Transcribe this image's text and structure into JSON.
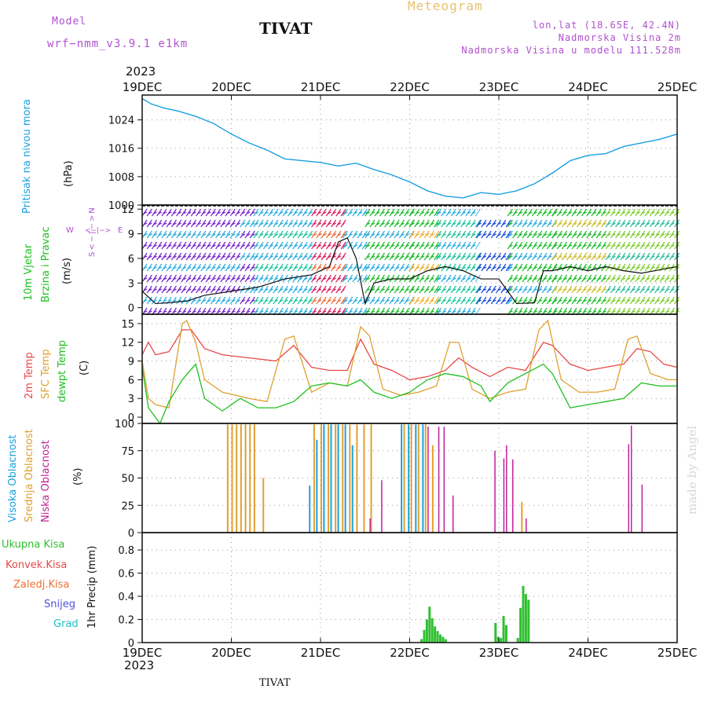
{
  "header": {
    "model_label": "Model",
    "model_name": "wrf−nmm_v3.9.1  e1km",
    "station": "TIVAT",
    "meteogram": "Meteogram",
    "lonlat": "lon,lat (18.65E, 42.4N)",
    "elev": "Nadmorska Visina 2m",
    "elev_model": "Nadmorska Visina u modelu 111.528m",
    "year": "2023",
    "footer_station": "TIVAT",
    "watermark": "made by Angel"
  },
  "colors": {
    "pressure": "#1aa0e0",
    "t2m": "#e84848",
    "tsfc": "#e0a030",
    "dewpt": "#20c020",
    "high_cloud": "#1aa0e0",
    "mid_cloud": "#e0a030",
    "low_cloud": "#c0209a",
    "precip_total": "#30c030",
    "precip_conv": "#e84848",
    "precip_freez": "#f07030",
    "snow": "#5050e0",
    "hail": "#20c0c0"
  },
  "x_labels": [
    "19DEC",
    "20DEC",
    "21DEC",
    "22DEC",
    "23DEC",
    "24DEC",
    "25DEC"
  ],
  "panels": {
    "pressure": {
      "label": "Pritisak na nivou mora",
      "unit": "(hPa)"
    },
    "wind": {
      "label1": "10m Vjetar",
      "label2": "Brzina i Pravac",
      "unit": "(m/s)",
      "compass_n": "N",
      "compass_s": "S",
      "compass_w": "W",
      "compass_e": "E",
      "compass_arrows": "<−|−>"
    },
    "temp": {
      "label1": "2m Temp",
      "label2": "SFC Temp",
      "label3": "dewpt Temp",
      "unit": "(C)"
    },
    "cloud": {
      "label1": "Visoka Oblacnost",
      "label2": "Srednja Oblacnost",
      "label3": "Niska Oblacnost",
      "unit": "(%)"
    },
    "precip": {
      "unit": "1hr Precip (mm)",
      "legend": [
        "Ukupna Kisa",
        "Konvek.Kisa",
        "Zaledj.Kisa",
        "Snijeg",
        "Grad"
      ]
    }
  },
  "chart_data": [
    {
      "type": "line",
      "name": "pressure",
      "ylim": [
        1000,
        1031
      ],
      "yticks": [
        1000,
        1008,
        1016,
        1024
      ],
      "x_days": [
        0,
        0.1,
        0.25,
        0.4,
        0.6,
        0.8,
        1,
        1.2,
        1.4,
        1.6,
        1.8,
        2,
        2.2,
        2.4,
        2.6,
        2.8,
        3,
        3.2,
        3.4,
        3.6,
        3.8,
        4,
        4.2,
        4.4,
        4.6,
        4.8,
        5,
        5.2,
        5.4,
        5.6,
        5.8,
        6
      ],
      "values": [
        1030,
        1028.5,
        1027.3,
        1026.5,
        1025,
        1023,
        1020,
        1017.5,
        1015.5,
        1013,
        1012.5,
        1012,
        1011,
        1011.8,
        1010,
        1008.5,
        1006.5,
        1004,
        1002.5,
        1002,
        1003.5,
        1003,
        1004,
        1006,
        1009,
        1012.5,
        1014,
        1014.5,
        1016.5,
        1017.5,
        1018.5,
        1020
      ]
    },
    {
      "type": "line",
      "name": "wind",
      "ylim": [
        -0.8,
        12.5
      ],
      "yticks": [
        0,
        3,
        6,
        9,
        12
      ],
      "x_days": [
        0,
        0.15,
        0.3,
        0.5,
        0.7,
        1,
        1.3,
        1.6,
        1.9,
        2.1,
        2.2,
        2.3,
        2.4,
        2.5,
        2.6,
        2.8,
        3,
        3.2,
        3.4,
        3.6,
        3.8,
        4,
        4.2,
        4.4,
        4.5,
        4.6,
        4.8,
        5,
        5.2,
        5.4,
        5.6,
        5.8,
        6
      ],
      "values": [
        2,
        0.5,
        0.6,
        0.8,
        1.5,
        2,
        2.5,
        3.5,
        4,
        5,
        8,
        8.5,
        6,
        0.5,
        3,
        3.5,
        3.5,
        4.5,
        5,
        4.5,
        3.5,
        3.5,
        0.5,
        0.6,
        4.5,
        4.5,
        5,
        4.5,
        5,
        4.5,
        4.2,
        4.6,
        5
      ]
    },
    {
      "type": "line",
      "name": "temperature",
      "ylim": [
        -1,
        16.5
      ],
      "yticks": [
        0,
        3,
        6,
        9,
        12,
        15
      ],
      "series": [
        {
          "name": "2m Temp",
          "x_days": [
            0,
            0.07,
            0.15,
            0.3,
            0.45,
            0.55,
            0.7,
            0.9,
            1.2,
            1.5,
            1.7,
            1.9,
            2.1,
            2.3,
            2.45,
            2.6,
            2.8,
            3,
            3.2,
            3.4,
            3.55,
            3.7,
            3.9,
            4.1,
            4.3,
            4.5,
            4.6,
            4.8,
            5,
            5.2,
            5.4,
            5.55,
            5.7,
            5.85,
            6
          ],
          "values": [
            10,
            12,
            10,
            10.5,
            14,
            14,
            11,
            10,
            9.5,
            9,
            11.5,
            8,
            7.5,
            7.5,
            12.5,
            8.5,
            7.5,
            6,
            6.5,
            7.5,
            9.5,
            8,
            6.5,
            8,
            7.5,
            12,
            11.5,
            8.5,
            7.5,
            8,
            8.5,
            11,
            10.5,
            8.5,
            8
          ]
        },
        {
          "name": "SFC Temp",
          "x_days": [
            0,
            0.07,
            0.15,
            0.3,
            0.45,
            0.5,
            0.6,
            0.7,
            0.9,
            1.2,
            1.4,
            1.6,
            1.7,
            1.9,
            2.1,
            2.3,
            2.45,
            2.55,
            2.7,
            2.9,
            3.1,
            3.3,
            3.45,
            3.55,
            3.7,
            3.9,
            4.1,
            4.3,
            4.45,
            4.55,
            4.7,
            4.9,
            5.1,
            5.3,
            5.45,
            5.55,
            5.7,
            5.9,
            6
          ],
          "values": [
            9,
            3,
            2,
            1.5,
            15,
            15.5,
            12,
            6,
            4,
            3,
            2.5,
            12.5,
            13,
            4,
            5.5,
            5,
            14.5,
            13,
            4.5,
            3.5,
            4,
            5,
            12,
            12,
            4.5,
            3,
            4,
            4.5,
            14,
            15.5,
            6,
            4,
            4,
            4.5,
            12.5,
            13,
            7,
            6,
            6
          ]
        },
        {
          "name": "dewpt Temp",
          "x_days": [
            0,
            0.07,
            0.2,
            0.3,
            0.45,
            0.6,
            0.7,
            0.9,
            1.1,
            1.3,
            1.5,
            1.7,
            1.9,
            2.1,
            2.3,
            2.45,
            2.6,
            2.8,
            3,
            3.2,
            3.4,
            3.6,
            3.8,
            3.9,
            4.1,
            4.3,
            4.5,
            4.6,
            4.8,
            5,
            5.2,
            5.4,
            5.6,
            5.8,
            6
          ],
          "values": [
            8,
            1.5,
            -1,
            2.5,
            6,
            8.5,
            3,
            1,
            3,
            1.5,
            1.5,
            2.5,
            5,
            5.5,
            5,
            6,
            4,
            3,
            4,
            6,
            7,
            6.5,
            5,
            2.5,
            5.5,
            7,
            8.5,
            7,
            1.5,
            2,
            2.5,
            3,
            5.5,
            5,
            5
          ]
        }
      ]
    },
    {
      "type": "bar",
      "name": "cloud",
      "ylim": [
        0,
        100
      ],
      "yticks": [
        0,
        25,
        50,
        75,
        100
      ],
      "series": [
        {
          "name": "high",
          "x_days": [
            1.87,
            1.95,
            2.03,
            2.11,
            2.19,
            2.27,
            2.35,
            2.9,
            2.98,
            3.06,
            3.14
          ],
          "values": [
            43,
            85,
            99,
            99,
            99,
            99,
            80,
            99,
            99,
            99,
            99
          ]
        },
        {
          "name": "mid",
          "x_days": [
            0.95,
            1.0,
            1.05,
            1.1,
            1.15,
            1.2,
            1.25,
            1.35,
            1.92,
            2.0,
            2.08,
            2.16,
            2.24,
            2.32,
            2.4,
            2.48,
            2.56,
            2.93,
            3.01,
            3.09,
            3.17,
            3.25,
            4.25
          ],
          "values": [
            99,
            99,
            99,
            99,
            99,
            99,
            99,
            50,
            99,
            99,
            99,
            99,
            99,
            99,
            99,
            99,
            99,
            99,
            99,
            99,
            99,
            80,
            28
          ]
        },
        {
          "name": "low",
          "x_days": [
            2.55,
            2.68,
            3.2,
            3.32,
            3.38,
            3.48,
            3.95,
            4.05,
            4.08,
            4.15,
            4.3,
            5.45,
            5.48,
            5.6
          ],
          "values": [
            13,
            48,
            97,
            97,
            97,
            34,
            75,
            68,
            80,
            67,
            13,
            81,
            98,
            44
          ]
        }
      ]
    },
    {
      "type": "bar",
      "name": "precip",
      "ylim": [
        0,
        0.95
      ],
      "yticks": [
        0,
        0.2,
        0.4,
        0.6,
        0.8
      ],
      "x_days": [
        3.12,
        3.15,
        3.18,
        3.21,
        3.24,
        3.27,
        3.3,
        3.33,
        3.36,
        3.39,
        3.95,
        3.98,
        4.01,
        4.04,
        4.07,
        4.2,
        4.23,
        4.26,
        4.29,
        4.32
      ],
      "values": [
        0.03,
        0.11,
        0.2,
        0.31,
        0.21,
        0.14,
        0.1,
        0.07,
        0.05,
        0.03,
        0.17,
        0.05,
        0.04,
        0.23,
        0.15,
        0.04,
        0.3,
        0.49,
        0.42,
        0.37
      ]
    }
  ]
}
